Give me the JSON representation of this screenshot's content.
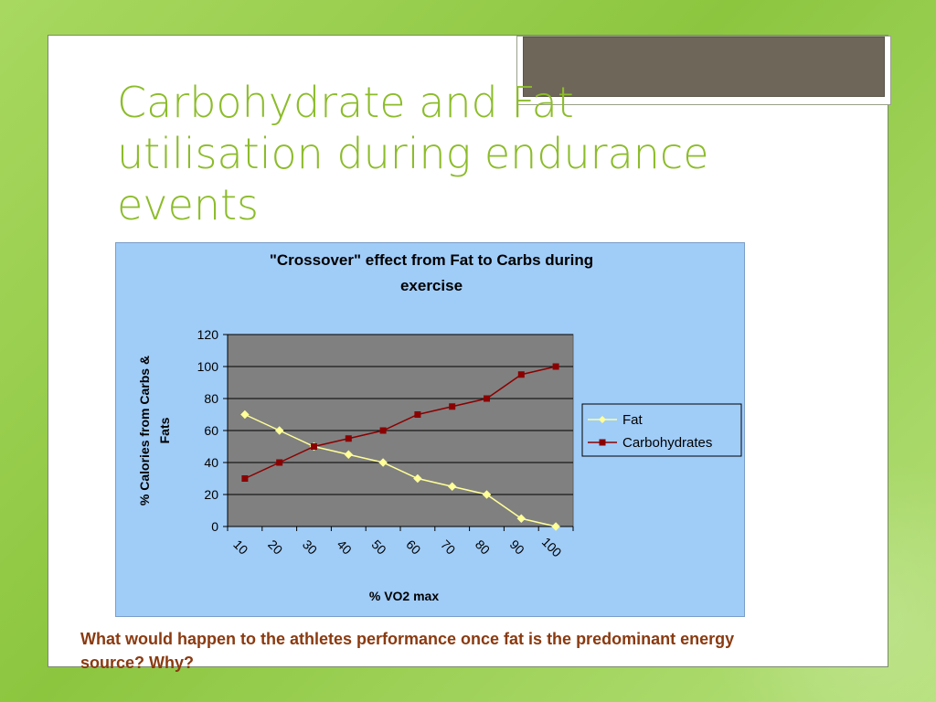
{
  "slide": {
    "title": "Carbohydrate and Fat utilisation during endurance events",
    "question": "What would happen to the athletes performance once fat is the predominant energy source? Why?"
  },
  "colors": {
    "title": "#8cbc2a",
    "question": "#8a3a10",
    "chart_bg": "#a0ccf8",
    "plot_bg": "#808080",
    "fat": "#ffff99",
    "carbohydrates": "#8b0000"
  },
  "chart_data": {
    "type": "line",
    "title": "\"Crossover\" effect from Fat to Carbs during exercise",
    "xlabel": "% VO2 max",
    "ylabel": "% Calories from Carbs & Fats",
    "categories": [
      "10",
      "20",
      "30",
      "40",
      "50",
      "60",
      "70",
      "80",
      "90",
      "100"
    ],
    "ylim": [
      0,
      120
    ],
    "yticks": [
      0,
      20,
      40,
      60,
      80,
      100,
      120
    ],
    "grid": true,
    "legend": "right",
    "series": [
      {
        "name": "Fat",
        "color": "#ffff99",
        "marker": "diamond",
        "values": [
          70,
          60,
          50,
          45,
          40,
          30,
          25,
          20,
          5,
          0
        ]
      },
      {
        "name": "Carbohydrates",
        "color": "#8b0000",
        "marker": "square",
        "values": [
          30,
          40,
          50,
          55,
          60,
          70,
          75,
          80,
          95,
          100
        ]
      }
    ]
  }
}
